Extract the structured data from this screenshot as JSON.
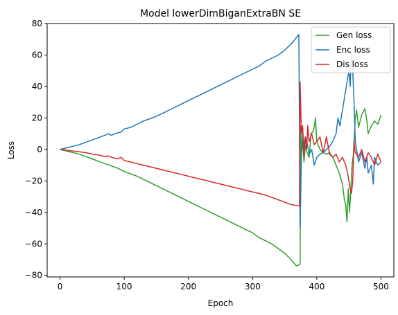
{
  "chart_data": {
    "type": "line",
    "title": "Model lowerDimBiganExtraBN SE",
    "xlabel": "Epoch",
    "ylabel": "Loss",
    "xlim": [
      -20,
      520
    ],
    "ylim": [
      -81,
      80
    ],
    "xticks": [
      0,
      100,
      200,
      300,
      400,
      500
    ],
    "yticks": [
      -80,
      -60,
      -40,
      -20,
      0,
      20,
      40,
      60,
      80
    ],
    "grid": false,
    "legend_position": "top-right",
    "series": [
      {
        "name": "Gen loss",
        "color": "#2ca02c",
        "points": [
          [
            0,
            0
          ],
          [
            10,
            -1
          ],
          [
            20,
            -2
          ],
          [
            30,
            -3
          ],
          [
            40,
            -4.5
          ],
          [
            50,
            -6
          ],
          [
            60,
            -7.5
          ],
          [
            70,
            -9
          ],
          [
            80,
            -10.5
          ],
          [
            90,
            -12
          ],
          [
            100,
            -14
          ],
          [
            110,
            -15.5
          ],
          [
            120,
            -17
          ],
          [
            130,
            -19
          ],
          [
            140,
            -21
          ],
          [
            150,
            -23
          ],
          [
            160,
            -25
          ],
          [
            170,
            -27
          ],
          [
            180,
            -29
          ],
          [
            190,
            -31
          ],
          [
            200,
            -33
          ],
          [
            210,
            -35
          ],
          [
            220,
            -37
          ],
          [
            230,
            -39
          ],
          [
            240,
            -41
          ],
          [
            250,
            -43
          ],
          [
            260,
            -45
          ],
          [
            270,
            -47
          ],
          [
            280,
            -49
          ],
          [
            290,
            -51
          ],
          [
            300,
            -53
          ],
          [
            310,
            -56
          ],
          [
            320,
            -58
          ],
          [
            330,
            -60
          ],
          [
            340,
            -63
          ],
          [
            350,
            -66
          ],
          [
            360,
            -70
          ],
          [
            368,
            -74
          ],
          [
            374,
            -73
          ],
          [
            375,
            15
          ],
          [
            376,
            -3
          ],
          [
            378,
            5
          ],
          [
            380,
            -8
          ],
          [
            382,
            2
          ],
          [
            385,
            -2
          ],
          [
            388,
            -5
          ],
          [
            391,
            10
          ],
          [
            395,
            12
          ],
          [
            398,
            20
          ],
          [
            400,
            5
          ],
          [
            405,
            0
          ],
          [
            410,
            -2
          ],
          [
            415,
            -3
          ],
          [
            420,
            -2
          ],
          [
            425,
            -5
          ],
          [
            430,
            -10
          ],
          [
            435,
            -15
          ],
          [
            440,
            -22
          ],
          [
            443,
            -32
          ],
          [
            445,
            -35
          ],
          [
            447,
            -46
          ],
          [
            449,
            -25
          ],
          [
            451,
            -40
          ],
          [
            455,
            -10
          ],
          [
            457,
            -3
          ],
          [
            460,
            20
          ],
          [
            462,
            25
          ],
          [
            465,
            14
          ],
          [
            470,
            22
          ],
          [
            475,
            26
          ],
          [
            478,
            18
          ],
          [
            480,
            10
          ],
          [
            485,
            15
          ],
          [
            490,
            18
          ],
          [
            495,
            16
          ],
          [
            500,
            22
          ]
        ]
      },
      {
        "name": "Enc loss",
        "color": "#1f77b4",
        "points": [
          [
            0,
            0
          ],
          [
            10,
            1
          ],
          [
            20,
            2
          ],
          [
            30,
            3
          ],
          [
            40,
            4.5
          ],
          [
            50,
            6
          ],
          [
            60,
            7.5
          ],
          [
            70,
            9
          ],
          [
            75,
            10
          ],
          [
            80,
            9
          ],
          [
            85,
            10
          ],
          [
            95,
            11
          ],
          [
            100,
            13
          ],
          [
            110,
            14
          ],
          [
            120,
            16
          ],
          [
            130,
            18
          ],
          [
            140,
            19.5
          ],
          [
            150,
            21
          ],
          [
            160,
            23
          ],
          [
            170,
            25
          ],
          [
            180,
            27
          ],
          [
            190,
            29
          ],
          [
            200,
            31
          ],
          [
            210,
            33
          ],
          [
            220,
            35
          ],
          [
            230,
            37
          ],
          [
            240,
            39
          ],
          [
            250,
            41
          ],
          [
            260,
            43
          ],
          [
            270,
            45
          ],
          [
            280,
            47
          ],
          [
            290,
            49
          ],
          [
            300,
            51
          ],
          [
            310,
            53
          ],
          [
            320,
            56
          ],
          [
            330,
            58
          ],
          [
            340,
            60
          ],
          [
            350,
            63
          ],
          [
            360,
            67
          ],
          [
            368,
            71
          ],
          [
            372,
            73
          ],
          [
            374,
            -50
          ],
          [
            376,
            -5
          ],
          [
            378,
            10
          ],
          [
            380,
            2
          ],
          [
            382,
            8
          ],
          [
            385,
            4
          ],
          [
            388,
            -3
          ],
          [
            392,
            0
          ],
          [
            396,
            -10
          ],
          [
            400,
            -5
          ],
          [
            405,
            -3
          ],
          [
            410,
            -2
          ],
          [
            415,
            0
          ],
          [
            420,
            2
          ],
          [
            425,
            5
          ],
          [
            430,
            10
          ],
          [
            433,
            20
          ],
          [
            436,
            15
          ],
          [
            440,
            25
          ],
          [
            444,
            35
          ],
          [
            448,
            45
          ],
          [
            450,
            50
          ],
          [
            452,
            40
          ],
          [
            454,
            62
          ],
          [
            456,
            50
          ],
          [
            458,
            30
          ],
          [
            460,
            5
          ],
          [
            465,
            -8
          ],
          [
            470,
            -2
          ],
          [
            475,
            -12
          ],
          [
            478,
            -5
          ],
          [
            480,
            -15
          ],
          [
            485,
            -10
          ],
          [
            488,
            -22
          ],
          [
            490,
            -5
          ],
          [
            495,
            -10
          ],
          [
            500,
            -8
          ]
        ]
      },
      {
        "name": "Dis loss",
        "color": "#d62728",
        "points": [
          [
            0,
            0
          ],
          [
            10,
            -0.5
          ],
          [
            20,
            -1
          ],
          [
            30,
            -1.5
          ],
          [
            40,
            -2
          ],
          [
            50,
            -3
          ],
          [
            60,
            -3.5
          ],
          [
            70,
            -4.5
          ],
          [
            75,
            -4
          ],
          [
            80,
            -5
          ],
          [
            85,
            -5.5
          ],
          [
            90,
            -6
          ],
          [
            95,
            -5
          ],
          [
            100,
            -7
          ],
          [
            110,
            -8
          ],
          [
            120,
            -9
          ],
          [
            130,
            -10
          ],
          [
            140,
            -11
          ],
          [
            150,
            -12
          ],
          [
            160,
            -13
          ],
          [
            170,
            -14
          ],
          [
            180,
            -15
          ],
          [
            190,
            -16
          ],
          [
            200,
            -17
          ],
          [
            210,
            -18
          ],
          [
            220,
            -19
          ],
          [
            230,
            -20
          ],
          [
            240,
            -21
          ],
          [
            250,
            -22
          ],
          [
            260,
            -23
          ],
          [
            270,
            -24
          ],
          [
            280,
            -25
          ],
          [
            290,
            -26
          ],
          [
            300,
            -27
          ],
          [
            310,
            -28
          ],
          [
            320,
            -29
          ],
          [
            330,
            -30.5
          ],
          [
            340,
            -32
          ],
          [
            350,
            -33.5
          ],
          [
            360,
            -35
          ],
          [
            373,
            -36
          ],
          [
            374,
            43
          ],
          [
            376,
            10
          ],
          [
            378,
            15
          ],
          [
            380,
            -5
          ],
          [
            382,
            8
          ],
          [
            384,
            0
          ],
          [
            386,
            15
          ],
          [
            388,
            5
          ],
          [
            392,
            10
          ],
          [
            396,
            3
          ],
          [
            400,
            5
          ],
          [
            405,
            8
          ],
          [
            410,
            -2
          ],
          [
            415,
            8
          ],
          [
            420,
            -3
          ],
          [
            425,
            -5
          ],
          [
            430,
            -3
          ],
          [
            435,
            -8
          ],
          [
            440,
            -5
          ],
          [
            445,
            -10
          ],
          [
            448,
            -15
          ],
          [
            450,
            -20
          ],
          [
            452,
            -25
          ],
          [
            454,
            -28
          ],
          [
            456,
            -20
          ],
          [
            458,
            5
          ],
          [
            460,
            -2
          ],
          [
            465,
            -5
          ],
          [
            470,
            0
          ],
          [
            475,
            -8
          ],
          [
            480,
            -2
          ],
          [
            485,
            -5
          ],
          [
            490,
            -10
          ],
          [
            495,
            -3
          ],
          [
            500,
            -8
          ]
        ]
      }
    ]
  }
}
